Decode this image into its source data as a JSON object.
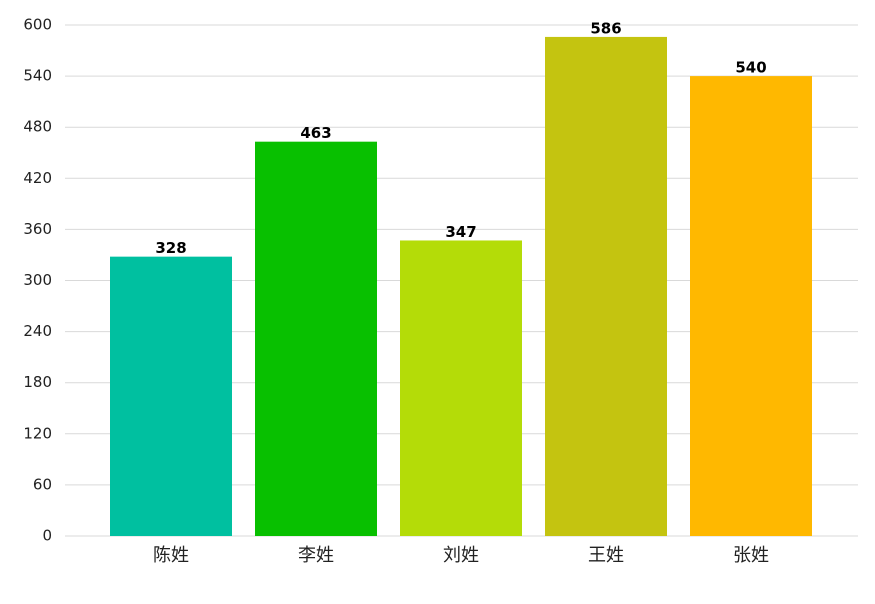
{
  "chart_data": {
    "type": "bar",
    "categories": [
      "陈姓",
      "李姓",
      "刘姓",
      "王姓",
      "张姓"
    ],
    "values": [
      328,
      463,
      347,
      586,
      540
    ],
    "colors": [
      "#00c0a0",
      "#08c000",
      "#b4dc08",
      "#c4c410",
      "#ffb800"
    ],
    "ylim": [
      0,
      600
    ],
    "yticks": [
      0,
      60,
      120,
      180,
      240,
      300,
      360,
      420,
      480,
      540,
      600
    ],
    "grid": true
  }
}
